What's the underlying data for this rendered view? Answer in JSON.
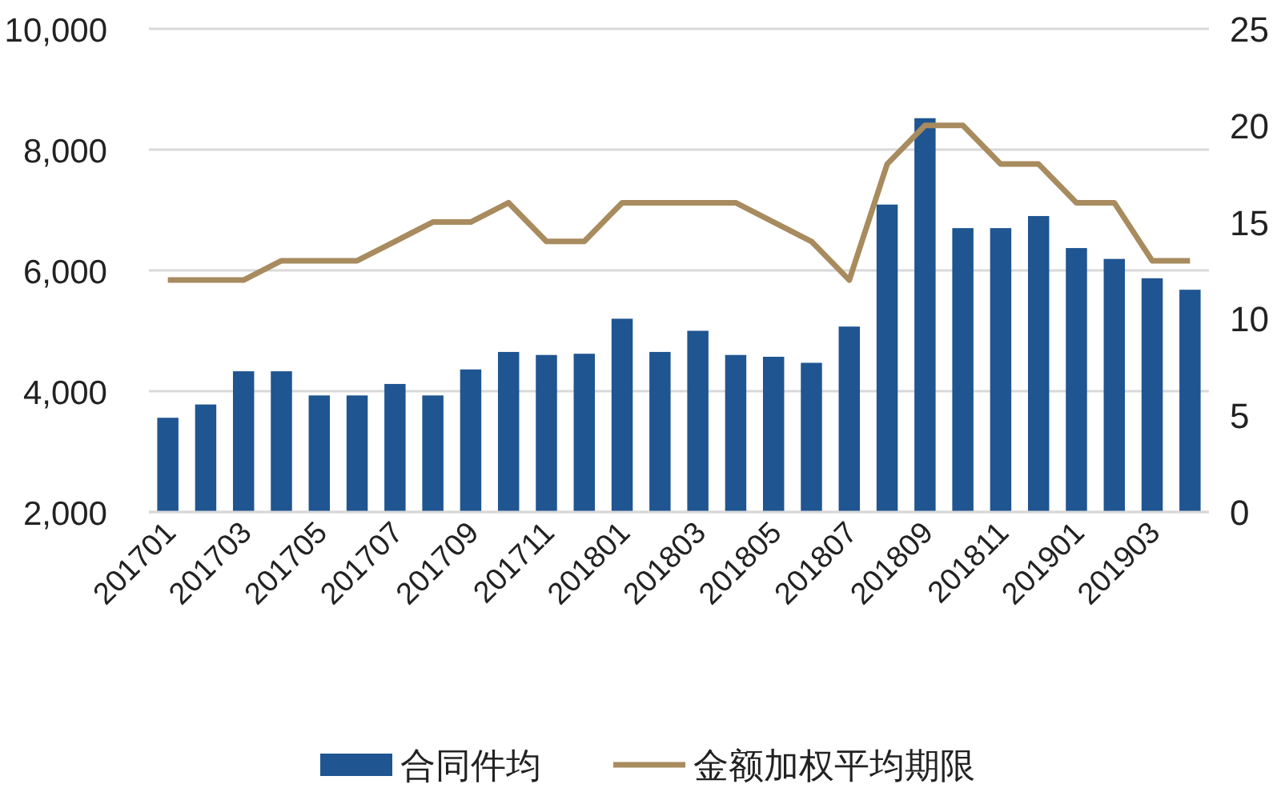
{
  "chart_data": {
    "type": "bar",
    "categories": [
      "201701",
      null,
      "201703",
      null,
      "201705",
      null,
      "201707",
      null,
      "201709",
      null,
      "201711",
      null,
      "201801",
      null,
      "201803",
      null,
      "201805",
      null,
      "201807",
      null,
      "201809",
      null,
      "201811",
      null,
      "201901",
      null,
      "201903",
      null
    ],
    "series": [
      {
        "name": "合同件均",
        "color": "#1f5591",
        "values": [
          3560,
          3780,
          4330,
          4330,
          3930,
          3930,
          4120,
          3930,
          4360,
          4650,
          4600,
          4620,
          5200,
          4650,
          5000,
          4600,
          4570,
          4470,
          5070,
          7090,
          8520,
          6700,
          6700,
          6900,
          6370,
          6190,
          5870,
          5680
        ]
      },
      {
        "name": "金额加权平均期限",
        "type": "line",
        "axis": "y2",
        "color": "#a88b5e",
        "values": [
          12,
          12,
          12,
          13,
          13,
          13,
          14,
          15,
          15,
          16,
          14,
          14,
          16,
          16,
          16,
          16,
          15,
          14,
          12,
          18,
          20,
          20,
          18,
          18,
          16,
          16,
          13,
          13
        ]
      }
    ],
    "ylim": [
      2000,
      10000
    ],
    "yticks": [
      {
        "value": 2000,
        "label": "2,000"
      },
      {
        "value": 4000,
        "label": "4,000"
      },
      {
        "value": 6000,
        "label": "6,000"
      },
      {
        "value": 8000,
        "label": "8,000"
      },
      {
        "value": 10000,
        "label": "10,000"
      }
    ],
    "y2lim": [
      0,
      25
    ],
    "y2ticks": [
      0,
      5,
      10,
      15,
      20,
      25
    ],
    "grid": "y",
    "legend": "bottom"
  }
}
